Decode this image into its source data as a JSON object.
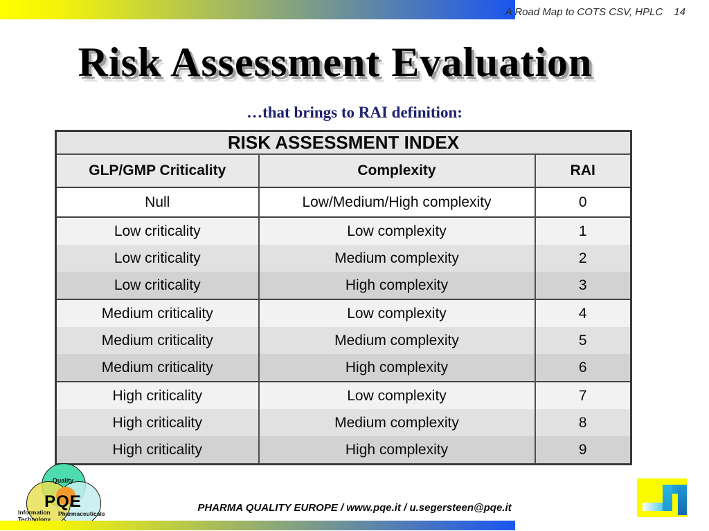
{
  "header": {
    "title": "A Road Map to COTS CSV, HPLC",
    "page": "14"
  },
  "title": "Risk Assessment Evaluation",
  "subtitle": "…that brings to RAI definition:",
  "table": {
    "caption": "RISK ASSESSMENT INDEX",
    "columns": {
      "c1": "GLP/GMP Criticality",
      "c2": "Complexity",
      "c3": "RAI"
    },
    "rows": [
      {
        "c1": "Null",
        "c2": "Low/Medium/High complexity",
        "c3": "0"
      },
      {
        "c1": "Low criticality",
        "c2": "Low complexity",
        "c3": "1"
      },
      {
        "c1": "Low criticality",
        "c2": "Medium complexity",
        "c3": "2"
      },
      {
        "c1": "Low criticality",
        "c2": "High complexity",
        "c3": "3"
      },
      {
        "c1": "Medium criticality",
        "c2": "Low complexity",
        "c3": "4"
      },
      {
        "c1": "Medium criticality",
        "c2": "Medium complexity",
        "c3": "5"
      },
      {
        "c1": "Medium criticality",
        "c2": "High complexity",
        "c3": "6"
      },
      {
        "c1": "High criticality",
        "c2": "Low complexity",
        "c3": "7"
      },
      {
        "c1": "High criticality",
        "c2": "Medium complexity",
        "c3": "8"
      },
      {
        "c1": "High criticality",
        "c2": "High complexity",
        "c3": "9"
      }
    ]
  },
  "footer": "PHARMA QUALITY EUROPE / www.pqe.it / u.segersteen@pqe.it",
  "logos": {
    "pqe": {
      "name": "PQE",
      "quality": "Quality",
      "it_line1": "Information",
      "it_line2": "Technology",
      "pharma": "Pharmaceuticals"
    }
  },
  "colors": {
    "gradient_start": "#ffff00",
    "gradient_end": "#1b55f0",
    "subtitle_text": "#1f2170",
    "table_header_bg": "#e4e4e4",
    "row_shade_light": "#f2f2f2",
    "row_shade_mid": "#e1e1e1",
    "row_shade_dark": "#d2d2d2",
    "logo_quality_circle": "#3ed9a6",
    "logo_it_circle": "#e8e156",
    "logo_pharma_circle": "#c4eeee",
    "logo_center_overlap": "#f29a2e",
    "corner_logo_yellow": "#fbfb00"
  }
}
